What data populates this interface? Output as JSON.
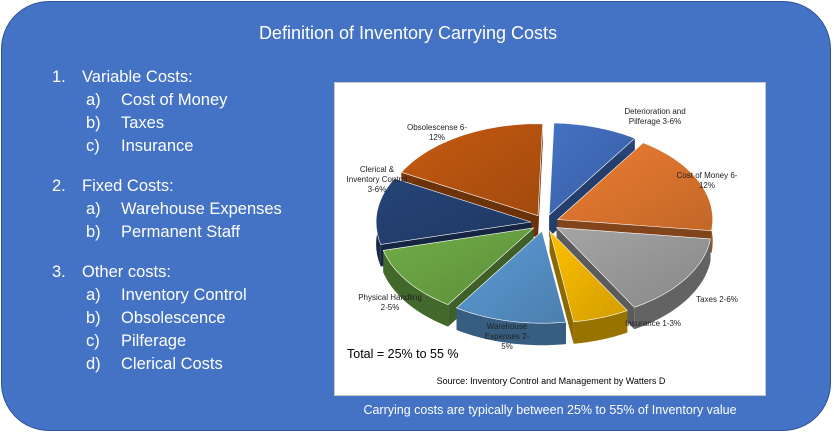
{
  "title": "Definition of Inventory Carrying Costs",
  "sections": [
    {
      "number": "1.",
      "heading": "Variable Costs:",
      "items": [
        {
          "letter": "a)",
          "text": "Cost of Money"
        },
        {
          "letter": "b)",
          "text": "Taxes"
        },
        {
          "letter": "c)",
          "text": "Insurance"
        }
      ]
    },
    {
      "number": "2.",
      "heading": "Fixed Costs:",
      "items": [
        {
          "letter": "a)",
          "text": "Warehouse Expenses"
        },
        {
          "letter": "b)",
          "text": "Permanent Staff"
        }
      ]
    },
    {
      "number": "3.",
      "heading": "Other costs:",
      "items": [
        {
          "letter": "a)",
          "text": "Inventory Control"
        },
        {
          "letter": "b)",
          "text": "Obsolescence"
        },
        {
          "letter": "c)",
          "text": "Pilferage"
        },
        {
          "letter": "d)",
          "text": "Clerical Costs"
        }
      ]
    }
  ],
  "chart_data": {
    "type": "pie",
    "slices": [
      {
        "label": "Deterioration and\nPilferage   3-6%",
        "value": 4.5,
        "color": "#4472c4"
      },
      {
        "label": "Cost of Money 6-\n12%",
        "value": 9,
        "color": "#ed7d31"
      },
      {
        "label": "Taxes  2-6%",
        "value": 7.5,
        "color": "#a5a5a5"
      },
      {
        "label": "Insurance 1-3%",
        "value": 3,
        "color": "#ffc000"
      },
      {
        "label": "Warehouse\nExpenses        2-\n5%",
        "value": 6,
        "color": "#5b9bd5"
      },
      {
        "label": "Physical Handling\n2-5%",
        "value": 6,
        "color": "#70ad47"
      },
      {
        "label": "Clerical &\nInventory Control\n3-6%",
        "value": 6,
        "color": "#264478"
      },
      {
        "label": "Obsolescense 6-\n12%",
        "value": 9,
        "color": "#c55a11"
      }
    ],
    "total_note": "Total = 25% to 55 %",
    "source": "Source: Inventory Control and Management by Watters D"
  },
  "footer": "Carrying costs are typically between 25% to 55% of Inventory value"
}
